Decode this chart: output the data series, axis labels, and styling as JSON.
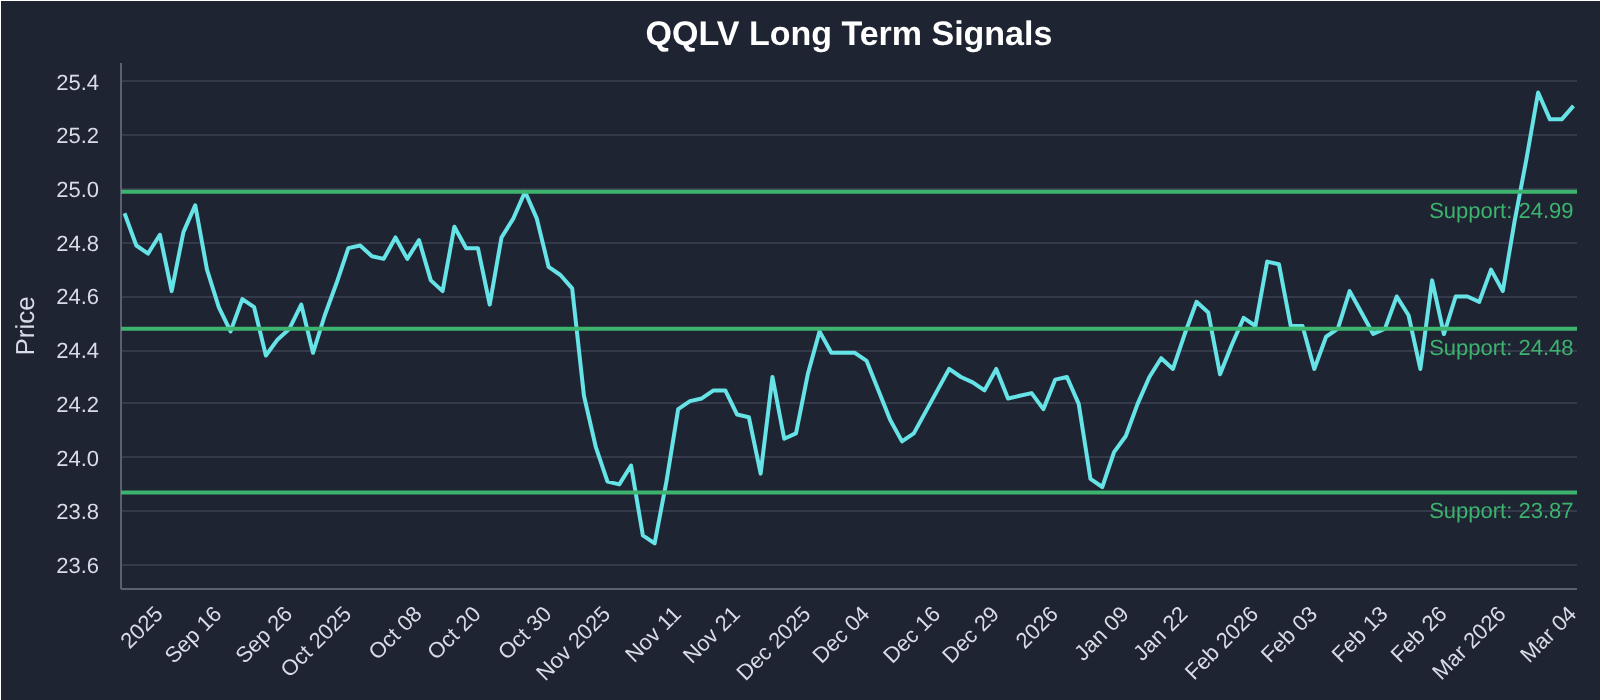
{
  "chart_data": {
    "type": "line",
    "title": "QQLV Long Term Signals",
    "ylabel": "Price",
    "categories": [
      null,
      null,
      null,
      "2025",
      null,
      null,
      null,
      null,
      "Sep 16",
      null,
      null,
      null,
      null,
      null,
      "Sep 26",
      null,
      null,
      null,
      null,
      "Oct 2025",
      null,
      null,
      null,
      null,
      null,
      "Oct 08",
      null,
      null,
      null,
      null,
      "Oct 20",
      null,
      null,
      null,
      null,
      null,
      "Oct 30",
      null,
      null,
      null,
      null,
      "Nov 2025",
      null,
      null,
      null,
      null,
      null,
      "Nov 11",
      null,
      null,
      null,
      null,
      "Nov 21",
      null,
      null,
      null,
      null,
      null,
      "Dec 2025",
      null,
      null,
      null,
      null,
      "Dec 04",
      null,
      null,
      null,
      null,
      null,
      "Dec 16",
      null,
      null,
      null,
      null,
      "Dec 29",
      null,
      null,
      null,
      null,
      "2026",
      null,
      null,
      null,
      null,
      null,
      "Jan 09",
      null,
      null,
      null,
      null,
      "Jan 22",
      null,
      null,
      null,
      null,
      null,
      "Feb 2026",
      null,
      null,
      null,
      null,
      "Feb 03",
      null,
      null,
      null,
      null,
      null,
      "Feb 13",
      null,
      null,
      null,
      null,
      "Feb 26",
      null,
      null,
      null,
      null,
      "Mar 2026",
      null,
      null,
      null,
      null,
      null,
      "Mar 04"
    ],
    "series": [
      {
        "color": "#66e3e6",
        "values": [
          24.91,
          24.79,
          24.76,
          24.83,
          24.62,
          24.84,
          24.94,
          24.7,
          24.56,
          24.47,
          24.59,
          24.56,
          24.38,
          24.44,
          24.48,
          24.57,
          24.39,
          24.53,
          24.65,
          24.78,
          24.79,
          24.75,
          24.74,
          24.82,
          24.74,
          24.81,
          24.66,
          24.62,
          24.86,
          24.78,
          24.78,
          24.57,
          24.82,
          24.89,
          24.99,
          24.89,
          24.71,
          24.68,
          24.63,
          24.23,
          24.04,
          23.91,
          23.9,
          23.97,
          23.71,
          23.68,
          23.91,
          24.18,
          24.21,
          24.22,
          24.25,
          24.25,
          24.16,
          24.15,
          23.94,
          24.3,
          24.07,
          24.09,
          24.31,
          24.47,
          24.39,
          24.39,
          24.39,
          24.36,
          24.25,
          24.14,
          24.06,
          24.09,
          24.17,
          24.25,
          24.33,
          24.3,
          24.28,
          24.25,
          24.33,
          24.22,
          24.23,
          24.24,
          24.18,
          24.29,
          24.3,
          24.2,
          23.92,
          23.89,
          24.02,
          24.08,
          24.2,
          24.3,
          24.37,
          24.33,
          24.46,
          24.58,
          24.54,
          24.31,
          24.42,
          24.52,
          24.49,
          24.73,
          24.72,
          24.49,
          24.49,
          24.33,
          24.45,
          24.48,
          24.62,
          24.54,
          24.46,
          24.48,
          24.6,
          24.53,
          24.33,
          24.66,
          24.46,
          24.6,
          24.6,
          24.58,
          24.7,
          24.62,
          24.88,
          25.11,
          25.36,
          25.26,
          25.26,
          25.31
        ]
      }
    ],
    "ylim": [
      23.51,
      25.47
    ],
    "yticks": [
      23.6,
      23.8,
      {
        "value": 24.0,
        "label": "24.0"
      },
      24.2,
      24.4,
      24.6,
      24.8,
      {
        "value": 25.0,
        "label": "25.0"
      },
      25.2,
      25.4
    ],
    "ref_lines": [
      {
        "axis": "y",
        "value": 24.99,
        "label": "Support: 24.99",
        "color": "#3cb46e"
      },
      {
        "axis": "y",
        "value": 24.48,
        "label": "Support: 24.48",
        "color": "#3cb46e"
      },
      {
        "axis": "y",
        "value": 23.87,
        "label": "Support: 23.87",
        "color": "#3cb46e"
      }
    ],
    "grid": "y",
    "marker": "none",
    "line_style": "solid"
  }
}
